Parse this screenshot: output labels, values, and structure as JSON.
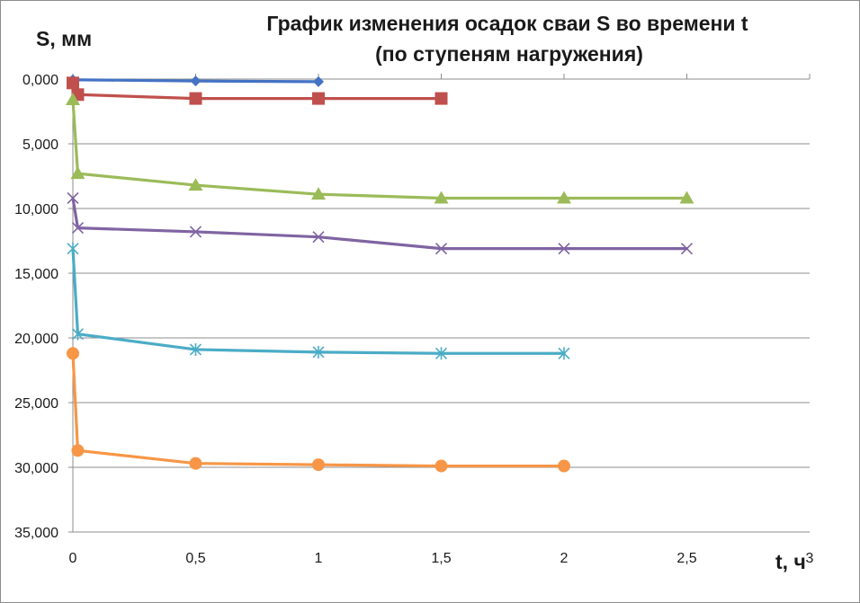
{
  "chart_data": {
    "type": "line",
    "title_lines": [
      "График изменения осадок сваи S во времени t",
      "(по ступеням нагружения)"
    ],
    "ylabel": "S, мм",
    "xlabel": "t, ч",
    "xlim": [
      0,
      3
    ],
    "ylim": [
      0,
      35
    ],
    "y_inverted": true,
    "x_ticks": [
      0,
      0.5,
      1,
      1.5,
      2,
      2.5,
      3
    ],
    "x_tick_labels": [
      "0",
      "0,5",
      "1",
      "1,5",
      "2",
      "2,5",
      "3"
    ],
    "y_ticks": [
      0,
      5,
      10,
      15,
      20,
      25,
      30,
      35
    ],
    "y_tick_labels": [
      "0,000",
      "5,000",
      "10,000",
      "15,000",
      "20,000",
      "25,000",
      "30,000",
      "35,000"
    ],
    "grid": "horizontal",
    "legend": "none",
    "series": [
      {
        "color": "#4472c4",
        "marker": "diamond",
        "x": [
          0,
          0.5,
          1
        ],
        "y": [
          0.05,
          0.15,
          0.2
        ]
      },
      {
        "color": "#c0504d",
        "marker": "square",
        "x": [
          0,
          0.02,
          0.5,
          1,
          1.5
        ],
        "y": [
          0.3,
          1.2,
          1.5,
          1.5,
          1.5
        ]
      },
      {
        "color": "#9bbb59",
        "marker": "triangle",
        "x": [
          0,
          0.02,
          0.5,
          1,
          1.5,
          2,
          2.5
        ],
        "y": [
          1.6,
          7.3,
          8.2,
          8.9,
          9.2,
          9.2,
          9.2
        ]
      },
      {
        "color": "#8064a2",
        "marker": "x",
        "x": [
          0,
          0.02,
          0.5,
          1,
          1.5,
          2,
          2.5
        ],
        "y": [
          9.2,
          11.5,
          11.8,
          12.2,
          13.1,
          13.1,
          13.1
        ]
      },
      {
        "color": "#4bacc6",
        "marker": "star",
        "x": [
          0,
          0.02,
          0.5,
          1,
          1.5,
          2
        ],
        "y": [
          13.1,
          19.7,
          20.9,
          21.1,
          21.2,
          21.2
        ]
      },
      {
        "color": "#f79646",
        "marker": "circle",
        "x": [
          0,
          0.02,
          0.5,
          1,
          1.5,
          2
        ],
        "y": [
          21.2,
          28.7,
          29.7,
          29.8,
          29.9,
          29.9
        ]
      }
    ]
  }
}
